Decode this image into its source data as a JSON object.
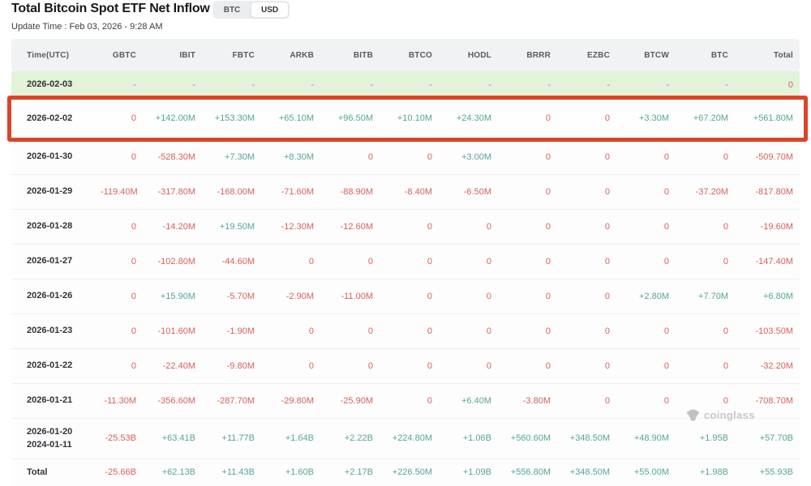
{
  "header": {
    "title": "Total Bitcoin Spot ETF Net Inflow (USD)",
    "update_time": "Update Time : Feb 03, 2026 - 9:28 AM",
    "toggle": {
      "options": [
        "BTC",
        "USD"
      ],
      "selected": "USD"
    }
  },
  "watermark": {
    "text": "coinglass",
    "icon": "gorilla-logo"
  },
  "colors": {
    "positive": "#56a596",
    "negative": "#d9605a",
    "highlight_border": "#de4327",
    "today_row_bg": "#e2f3d9",
    "watermark_gray": "#c5c7ca"
  },
  "table": {
    "columns": [
      "Time(UTC)",
      "GBTC",
      "IBIT",
      "FBTC",
      "ARKB",
      "BITB",
      "BTCO",
      "HODL",
      "BRRR",
      "EZBC",
      "BTCW",
      "BTC",
      "Total"
    ],
    "rows": [
      {
        "kind": "today",
        "time_lines": [
          "2026-02-03"
        ],
        "values": [
          "-",
          "-",
          "-",
          "-",
          "-",
          "-",
          "-",
          "-",
          "-",
          "-",
          "-",
          "0"
        ]
      },
      {
        "kind": "highlighted",
        "time_lines": [
          "2026-02-02"
        ],
        "values": [
          "0",
          "+142.00M",
          "+153.30M",
          "+65.10M",
          "+96.50M",
          "+10.10M",
          "+24.30M",
          "0",
          "0",
          "+3.30M",
          "+67.20M",
          "+561.80M"
        ]
      },
      {
        "kind": "normal",
        "time_lines": [
          "2026-01-30"
        ],
        "values": [
          "0",
          "-528.30M",
          "+7.30M",
          "+8.30M",
          "0",
          "0",
          "+3.00M",
          "0",
          "0",
          "0",
          "0",
          "-509.70M"
        ]
      },
      {
        "kind": "normal",
        "time_lines": [
          "2026-01-29"
        ],
        "values": [
          "-119.40M",
          "-317.80M",
          "-168.00M",
          "-71.60M",
          "-88.90M",
          "-8.40M",
          "-6.50M",
          "0",
          "0",
          "0",
          "-37.20M",
          "-817.80M"
        ]
      },
      {
        "kind": "normal",
        "time_lines": [
          "2026-01-28"
        ],
        "values": [
          "0",
          "-14.20M",
          "+19.50M",
          "-12.30M",
          "-12.60M",
          "0",
          "0",
          "0",
          "0",
          "0",
          "0",
          "-19.60M"
        ]
      },
      {
        "kind": "normal",
        "time_lines": [
          "2026-01-27"
        ],
        "values": [
          "0",
          "-102.80M",
          "-44.60M",
          "0",
          "0",
          "0",
          "0",
          "0",
          "0",
          "0",
          "0",
          "-147.40M"
        ]
      },
      {
        "kind": "normal",
        "time_lines": [
          "2026-01-26"
        ],
        "values": [
          "0",
          "+15.90M",
          "-5.70M",
          "-2.90M",
          "-11.00M",
          "0",
          "0",
          "0",
          "0",
          "+2.80M",
          "+7.70M",
          "+6.80M"
        ]
      },
      {
        "kind": "normal",
        "time_lines": [
          "2026-01-23"
        ],
        "values": [
          "0",
          "-101.60M",
          "-1.90M",
          "0",
          "0",
          "0",
          "0",
          "0",
          "0",
          "0",
          "0",
          "-103.50M"
        ]
      },
      {
        "kind": "normal",
        "time_lines": [
          "2026-01-22"
        ],
        "values": [
          "0",
          "-22.40M",
          "-9.80M",
          "0",
          "0",
          "0",
          "0",
          "0",
          "0",
          "0",
          "0",
          "-32.20M"
        ]
      },
      {
        "kind": "normal",
        "time_lines": [
          "2026-01-21"
        ],
        "values": [
          "-11.30M",
          "-356.60M",
          "-287.70M",
          "-29.80M",
          "-25.90M",
          "0",
          "+6.40M",
          "-3.80M",
          "0",
          "0",
          "0",
          "-708.70M"
        ]
      },
      {
        "kind": "range",
        "time_lines": [
          "2026-01-20",
          "2024-01-11"
        ],
        "values": [
          "-25.53B",
          "+63.41B",
          "+11.77B",
          "+1.64B",
          "+2.22B",
          "+224.80M",
          "+1.06B",
          "+560.60M",
          "+348.50M",
          "+48.90M",
          "+1.95B",
          "+57.70B"
        ]
      },
      {
        "kind": "total",
        "time_lines": [
          "Total"
        ],
        "values": [
          "-25.66B",
          "+62.13B",
          "+11.43B",
          "+1.60B",
          "+2.17B",
          "+226.50M",
          "+1.09B",
          "+556.80M",
          "+348.50M",
          "+55.00M",
          "+1.98B",
          "+55.93B"
        ]
      }
    ]
  }
}
